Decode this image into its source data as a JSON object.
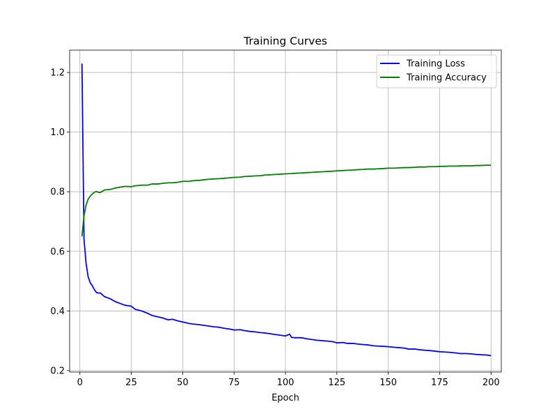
{
  "chart_data": {
    "type": "line",
    "title": "Training Curves",
    "xlabel": "Epoch",
    "ylabel": "",
    "xlim": [
      -5,
      205
    ],
    "ylim": [
      0.195,
      1.275
    ],
    "xticks": [
      0,
      25,
      50,
      75,
      100,
      125,
      150,
      175,
      200
    ],
    "yticks": [
      0.2,
      0.4,
      0.6,
      0.8,
      1.0,
      1.2
    ],
    "ytick_labels": [
      "0.2",
      "0.4",
      "0.6",
      "0.8",
      "1.0",
      "1.2"
    ],
    "grid": true,
    "legend_position": "top-right",
    "series": [
      {
        "name": "Training Loss",
        "color": "#0000ff",
        "x": [
          1,
          2,
          3,
          4,
          5,
          6,
          7,
          8,
          9,
          10,
          12,
          15,
          17,
          20,
          22,
          25,
          27,
          30,
          33,
          35,
          38,
          40,
          43,
          45,
          48,
          50,
          53,
          55,
          58,
          60,
          63,
          65,
          68,
          70,
          73,
          75,
          78,
          80,
          83,
          85,
          88,
          90,
          93,
          95,
          98,
          100,
          102,
          103,
          105,
          108,
          110,
          113,
          115,
          118,
          120,
          123,
          125,
          128,
          130,
          133,
          135,
          138,
          140,
          143,
          145,
          148,
          150,
          153,
          155,
          158,
          160,
          163,
          165,
          168,
          170,
          173,
          175,
          178,
          180,
          183,
          185,
          188,
          190,
          193,
          195,
          198,
          200
        ],
        "y": [
          1.23,
          0.64,
          0.56,
          0.515,
          0.495,
          0.485,
          0.472,
          0.462,
          0.46,
          0.46,
          0.448,
          0.44,
          0.432,
          0.424,
          0.419,
          0.416,
          0.405,
          0.4,
          0.392,
          0.385,
          0.38,
          0.377,
          0.37,
          0.372,
          0.366,
          0.363,
          0.358,
          0.356,
          0.354,
          0.352,
          0.349,
          0.347,
          0.345,
          0.342,
          0.339,
          0.336,
          0.337,
          0.334,
          0.331,
          0.33,
          0.327,
          0.326,
          0.323,
          0.321,
          0.318,
          0.316,
          0.322,
          0.311,
          0.31,
          0.31,
          0.307,
          0.304,
          0.302,
          0.3,
          0.299,
          0.297,
          0.293,
          0.294,
          0.291,
          0.291,
          0.289,
          0.287,
          0.286,
          0.283,
          0.282,
          0.281,
          0.28,
          0.278,
          0.277,
          0.275,
          0.272,
          0.272,
          0.27,
          0.268,
          0.267,
          0.265,
          0.263,
          0.262,
          0.261,
          0.259,
          0.257,
          0.257,
          0.256,
          0.254,
          0.253,
          0.252,
          0.25
        ]
      },
      {
        "name": "Training Accuracy",
        "color": "#008000",
        "x": [
          1,
          2,
          3,
          4,
          5,
          6,
          7,
          8,
          9,
          10,
          12,
          15,
          17,
          20,
          22,
          25,
          27,
          30,
          33,
          35,
          38,
          40,
          43,
          45,
          48,
          50,
          53,
          55,
          58,
          60,
          63,
          65,
          68,
          70,
          73,
          75,
          78,
          80,
          83,
          85,
          88,
          90,
          93,
          95,
          98,
          100,
          103,
          105,
          108,
          110,
          113,
          115,
          118,
          120,
          123,
          125,
          128,
          130,
          133,
          135,
          138,
          140,
          143,
          145,
          148,
          150,
          153,
          155,
          158,
          160,
          163,
          165,
          168,
          170,
          173,
          175,
          178,
          180,
          183,
          185,
          188,
          190,
          193,
          195,
          198,
          200
        ],
        "y": [
          0.65,
          0.72,
          0.755,
          0.775,
          0.785,
          0.792,
          0.798,
          0.801,
          0.798,
          0.798,
          0.806,
          0.808,
          0.812,
          0.816,
          0.818,
          0.817,
          0.82,
          0.822,
          0.822,
          0.826,
          0.826,
          0.828,
          0.83,
          0.83,
          0.832,
          0.835,
          0.835,
          0.837,
          0.838,
          0.84,
          0.842,
          0.843,
          0.844,
          0.845,
          0.847,
          0.848,
          0.849,
          0.851,
          0.852,
          0.853,
          0.854,
          0.856,
          0.857,
          0.858,
          0.859,
          0.86,
          0.861,
          0.862,
          0.863,
          0.864,
          0.865,
          0.866,
          0.867,
          0.868,
          0.869,
          0.87,
          0.871,
          0.872,
          0.873,
          0.874,
          0.875,
          0.876,
          0.876,
          0.877,
          0.878,
          0.879,
          0.879,
          0.88,
          0.881,
          0.881,
          0.882,
          0.883,
          0.883,
          0.884,
          0.884,
          0.885,
          0.885,
          0.886,
          0.886,
          0.887,
          0.887,
          0.887,
          0.888,
          0.888,
          0.889,
          0.889
        ]
      }
    ]
  }
}
